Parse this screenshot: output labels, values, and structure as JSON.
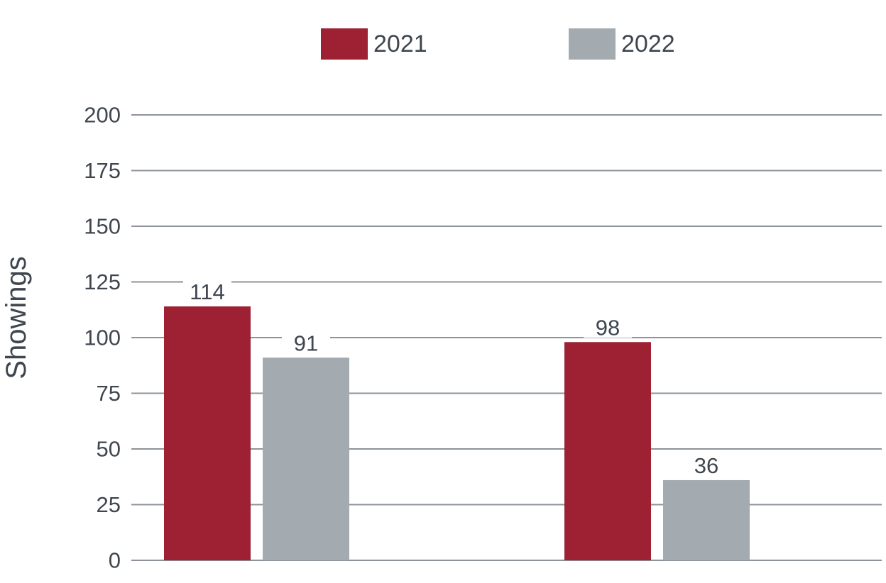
{
  "colors": {
    "series_2021": "#9d2133",
    "series_2022": "#a3abb1",
    "gridline": "#8d9399",
    "text": "#3f4650"
  },
  "chart_data": {
    "type": "bar",
    "title": "",
    "xlabel": "",
    "ylabel": "Showings",
    "ylim": [
      0,
      200
    ],
    "yticks": [
      0,
      25,
      50,
      75,
      100,
      125,
      150,
      175,
      200
    ],
    "grid": true,
    "legend_position": "top-center",
    "categories": [
      "",
      ""
    ],
    "series": [
      {
        "name": "2021",
        "color": "#9d2133",
        "values": [
          114,
          98
        ]
      },
      {
        "name": "2022",
        "color": "#a3abb1",
        "values": [
          91,
          36
        ]
      }
    ]
  }
}
